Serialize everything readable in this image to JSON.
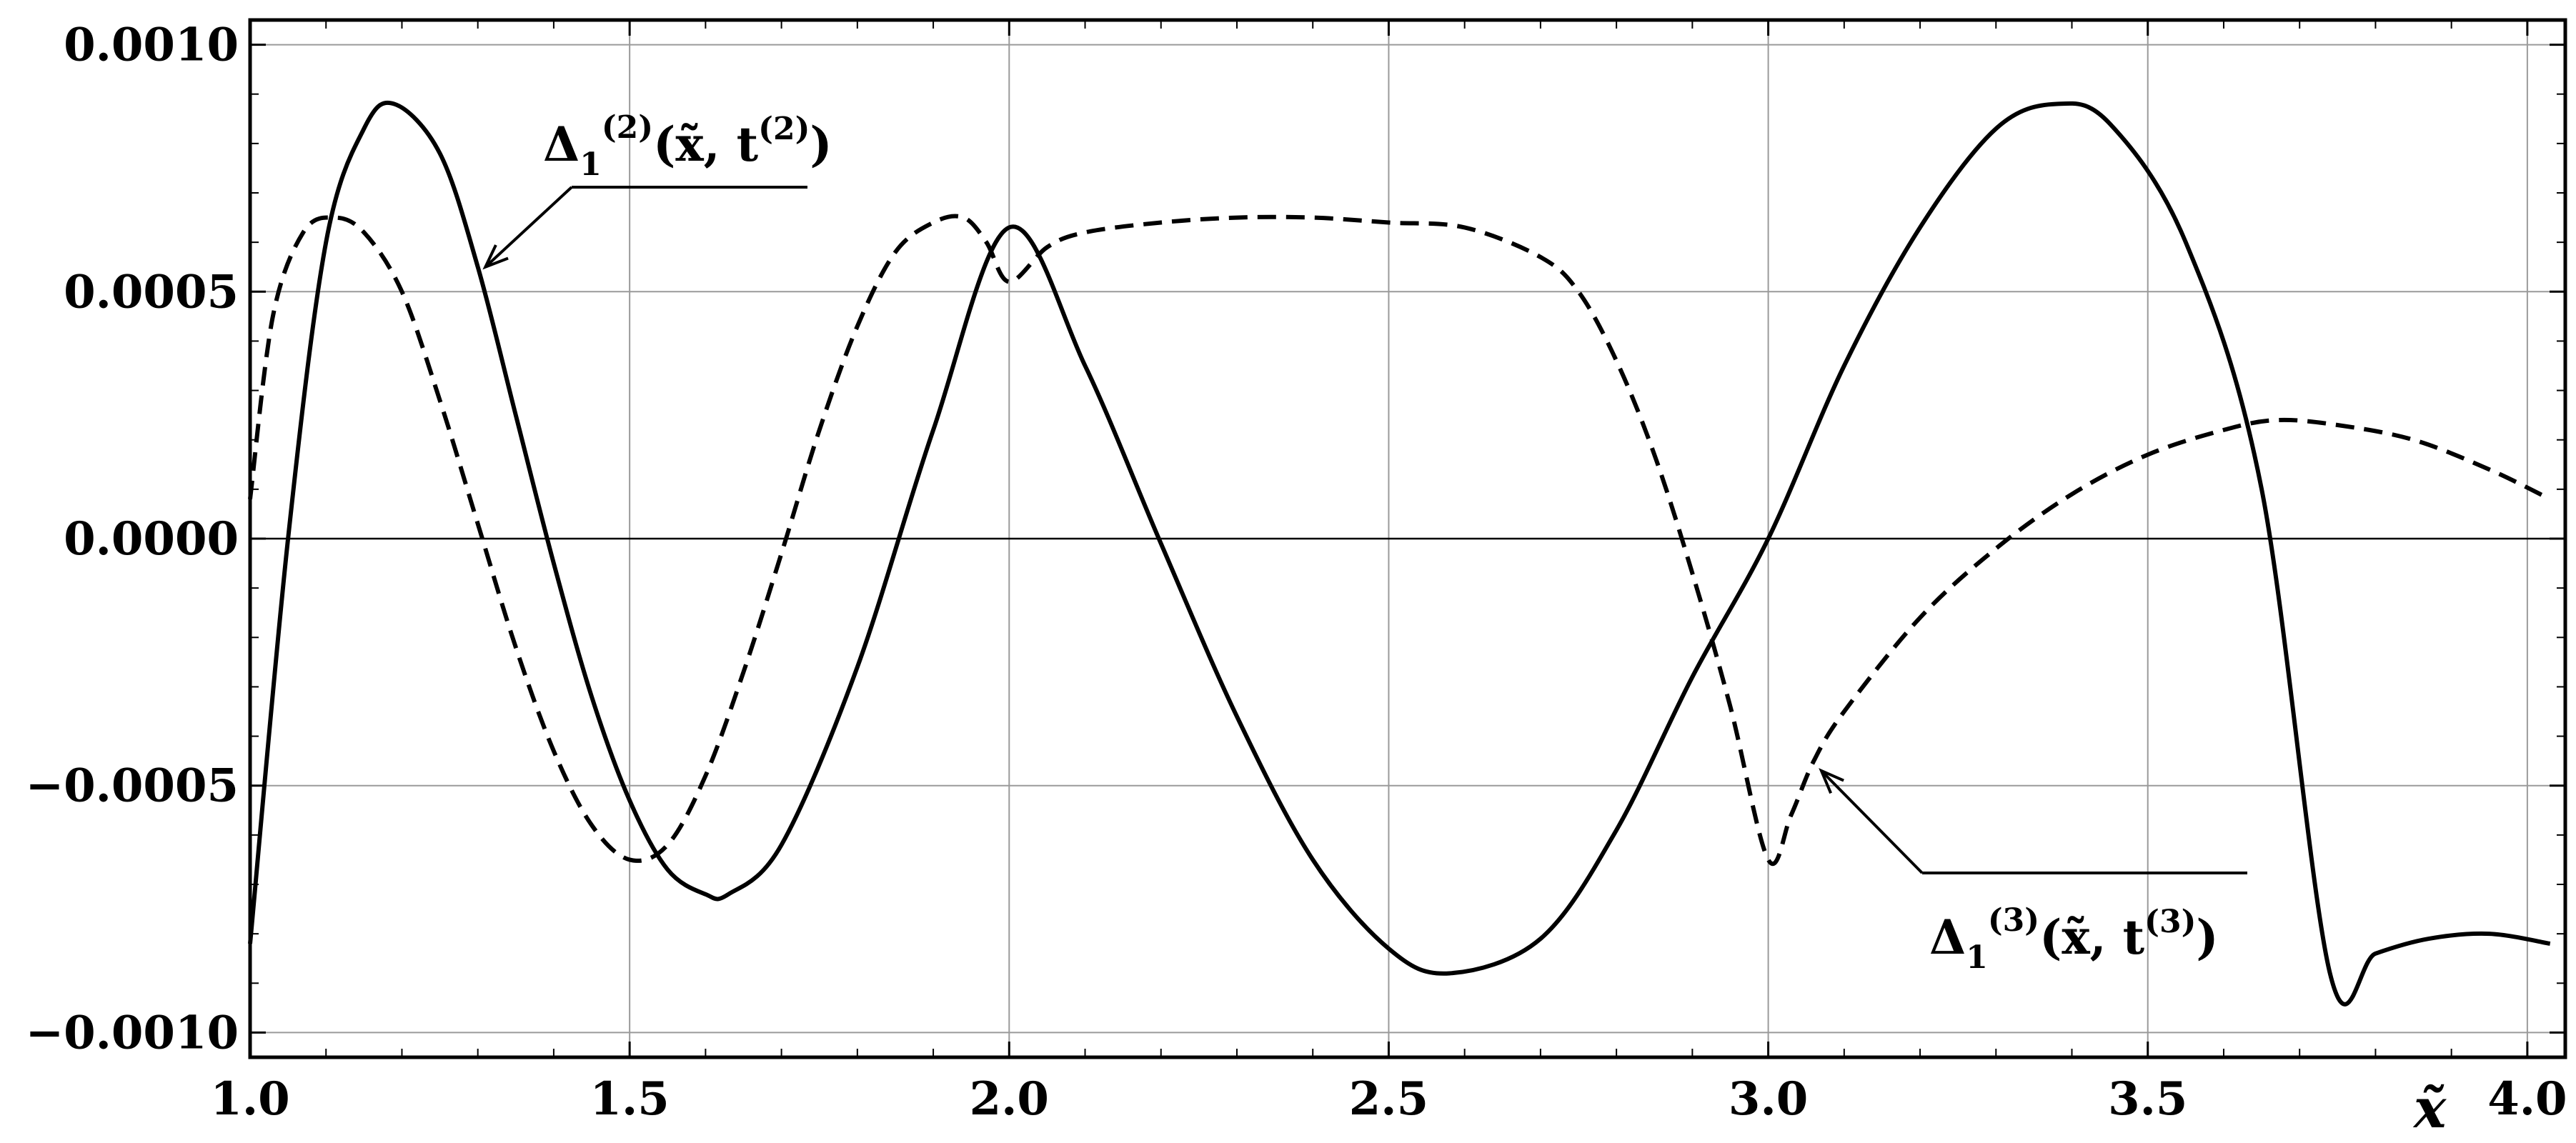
{
  "chart_data": {
    "type": "line",
    "title": "",
    "xlabel": "x̃",
    "ylabel": "",
    "xlim": [
      1.0,
      4.05
    ],
    "ylim": [
      -0.00105,
      0.00105
    ],
    "x_ticks": [
      1.0,
      1.5,
      2.0,
      2.5,
      3.0,
      3.5,
      4.0
    ],
    "x_tick_labels": [
      "1.0",
      "1.5",
      "2.0",
      "2.5",
      "3.0",
      "3.5",
      "4.0"
    ],
    "y_ticks": [
      -0.001,
      -0.0005,
      0.0,
      0.0005,
      0.001
    ],
    "y_tick_labels": [
      "−0.0010",
      "−0.0005",
      "0.0000",
      "0.0005",
      "0.0010"
    ],
    "grid": true,
    "series": [
      {
        "name": "Δ1(2)(x̃, t(2))",
        "style": "solid",
        "color": "#000000",
        "x": [
          1.0,
          1.05,
          1.1,
          1.15,
          1.19,
          1.25,
          1.3,
          1.35,
          1.4,
          1.45,
          1.5,
          1.55,
          1.6,
          1.63,
          1.7,
          1.8,
          1.9,
          2.0,
          2.1,
          2.2,
          2.3,
          2.4,
          2.5,
          2.58,
          2.7,
          2.8,
          2.9,
          3.0,
          3.1,
          3.2,
          3.3,
          3.38,
          3.45,
          3.55,
          3.65,
          3.74,
          3.8,
          3.87,
          3.95,
          4.03
        ],
        "y": [
          -0.00082,
          0.0,
          0.0006,
          0.00083,
          0.00088,
          0.00078,
          0.00055,
          0.00025,
          -5e-05,
          -0.00032,
          -0.00053,
          -0.00067,
          -0.00072,
          -0.00072,
          -0.00062,
          -0.00026,
          0.00022,
          0.00063,
          0.00035,
          -1e-05,
          -0.00036,
          -0.00065,
          -0.00083,
          -0.00088,
          -0.00081,
          -0.00059,
          -0.00028,
          0.0,
          0.00035,
          0.00063,
          0.00083,
          0.00088,
          0.00084,
          0.0006,
          0.0001,
          -0.00088,
          -0.00084,
          -0.00081,
          -0.0008,
          -0.00082
        ]
      },
      {
        "name": "Δ1(3)(x̃, t(3))",
        "style": "dashed",
        "color": "#000000",
        "x": [
          1.0,
          1.03,
          1.07,
          1.11,
          1.15,
          1.2,
          1.25,
          1.3,
          1.35,
          1.4,
          1.45,
          1.5,
          1.55,
          1.6,
          1.65,
          1.7,
          1.75,
          1.8,
          1.85,
          1.9,
          1.94,
          1.97,
          2.0,
          2.05,
          2.1,
          2.2,
          2.3,
          2.4,
          2.5,
          2.6,
          2.7,
          2.75,
          2.8,
          2.85,
          2.9,
          2.95,
          3.0,
          3.03,
          3.06,
          3.1,
          3.2,
          3.3,
          3.4,
          3.5,
          3.6,
          3.67,
          3.75,
          3.85,
          3.95,
          4.03
        ],
        "y": [
          8e-05,
          0.00045,
          0.00062,
          0.00065,
          0.00062,
          0.0005,
          0.00028,
          3e-05,
          -0.00022,
          -0.00043,
          -0.00058,
          -0.00065,
          -0.00062,
          -0.00048,
          -0.00027,
          -3e-05,
          0.00022,
          0.00043,
          0.00058,
          0.00064,
          0.00065,
          0.0006,
          0.00052,
          0.00059,
          0.00062,
          0.00064,
          0.00065,
          0.00065,
          0.00064,
          0.00063,
          0.00057,
          0.0005,
          0.00036,
          0.00017,
          -7e-05,
          -0.00034,
          -0.00065,
          -0.00056,
          -0.00045,
          -0.00035,
          -0.00016,
          -2e-05,
          9e-05,
          0.00017,
          0.00022,
          0.00024,
          0.00023,
          0.0002,
          0.00014,
          8e-05
        ]
      }
    ],
    "annotations": [
      {
        "main": "Δ",
        "sub": "1",
        "sup": "(2)",
        "tail": "(x̃, t",
        "tail_sup": "(2)",
        "close": ")",
        "points_to": [
          1.31,
          0.00055
        ]
      },
      {
        "main": "Δ",
        "sub": "1",
        "sup": "(3)",
        "tail": "(x̃, t",
        "tail_sup": "(3)",
        "close": ")",
        "points_to": [
          3.07,
          -0.00047
        ]
      }
    ]
  }
}
